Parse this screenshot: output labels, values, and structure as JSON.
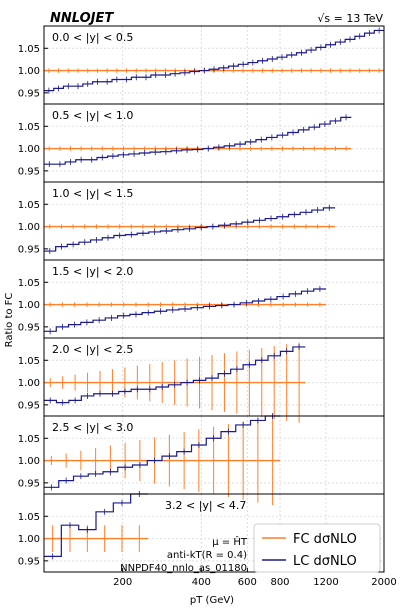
{
  "header": {
    "brand": "NNLOJET",
    "energy": "√s = 13 TeV"
  },
  "axes": {
    "ylabel": "Ratio to FC",
    "xlabel": "pT (GeV)",
    "x_scale": "log",
    "xlim": [
      100,
      2000
    ],
    "ylim": [
      0.925,
      1.1
    ],
    "yticks": [
      0.95,
      1.0,
      1.05
    ],
    "xticks": [
      200,
      400,
      600,
      800,
      1200,
      2000
    ],
    "grid": true
  },
  "annotations": {
    "scale": "μ = ĤT",
    "jet": "anti-kT(R = 0.4)",
    "pdf": "NNPDF40_nnlo_as_01180"
  },
  "legend": {
    "placement": "lower-right",
    "items": [
      {
        "label": "FC dσNLO",
        "color": "#ff7f2a"
      },
      {
        "label": "LC dσNLO",
        "color": "#1a1a8c"
      }
    ]
  },
  "chart_data": {
    "type": "line",
    "panels": [
      {
        "label": "0.0 < |y| < 0.5",
        "xmax": 2000,
        "lc": [
          0.955,
          0.96,
          0.965,
          0.965,
          0.97,
          0.975,
          0.975,
          0.98,
          0.98,
          0.985,
          0.985,
          0.99,
          0.99,
          0.993,
          0.995,
          0.998,
          1.0,
          1.003,
          1.006,
          1.01,
          1.014,
          1.018,
          1.022,
          1.026,
          1.03,
          1.035,
          1.04,
          1.046,
          1.052,
          1.058,
          1.064,
          1.07,
          1.077,
          1.084,
          1.09
        ]
      },
      {
        "label": "0.5 < |y| < 1.0",
        "xmax": 1500,
        "lc": [
          0.965,
          0.965,
          0.97,
          0.975,
          0.975,
          0.98,
          0.983,
          0.986,
          0.988,
          0.99,
          0.992,
          0.993,
          0.995,
          0.997,
          0.998,
          1.0,
          1.003,
          1.006,
          1.01,
          1.015,
          1.02,
          1.025,
          1.03,
          1.036,
          1.042,
          1.048,
          1.055,
          1.062,
          1.07
        ]
      },
      {
        "label": "1.0 < |y| < 1.5",
        "xmax": 1300,
        "lc": [
          0.945,
          0.955,
          0.96,
          0.965,
          0.97,
          0.975,
          0.98,
          0.982,
          0.985,
          0.988,
          0.99,
          0.993,
          0.995,
          0.998,
          1.0,
          1.003,
          1.006,
          1.01,
          1.014,
          1.018,
          1.022,
          1.027,
          1.032,
          1.037,
          1.042
        ]
      },
      {
        "label": "1.5 < |y| < 2.0",
        "xmax": 1200,
        "lc": [
          0.94,
          0.95,
          0.955,
          0.96,
          0.965,
          0.97,
          0.975,
          0.978,
          0.982,
          0.985,
          0.988,
          0.99,
          0.993,
          0.996,
          0.998,
          1.0,
          1.004,
          1.008,
          1.012,
          1.018,
          1.024,
          1.03,
          1.035
        ]
      },
      {
        "label": "2.0 < |y| < 2.5",
        "xmax": 1000,
        "lc": [
          0.96,
          0.955,
          0.96,
          0.97,
          0.975,
          0.975,
          0.98,
          0.985,
          0.985,
          0.99,
          0.995,
          1.0,
          1.005,
          1.01,
          1.02,
          1.03,
          1.04,
          1.05,
          1.06,
          1.07,
          1.08
        ]
      },
      {
        "label": "2.5 < |y| < 3.0",
        "xmax": 800,
        "lc": [
          0.94,
          0.955,
          0.965,
          0.97,
          0.975,
          0.985,
          0.99,
          1.0,
          1.01,
          1.02,
          1.035,
          1.05,
          1.065,
          1.08,
          1.09,
          1.1
        ]
      },
      {
        "label": "3.2 < |y| < 4.7",
        "xmax": 250,
        "lc": [
          0.96,
          1.03,
          1.02,
          1.06,
          1.08,
          1.1
        ]
      }
    ]
  }
}
